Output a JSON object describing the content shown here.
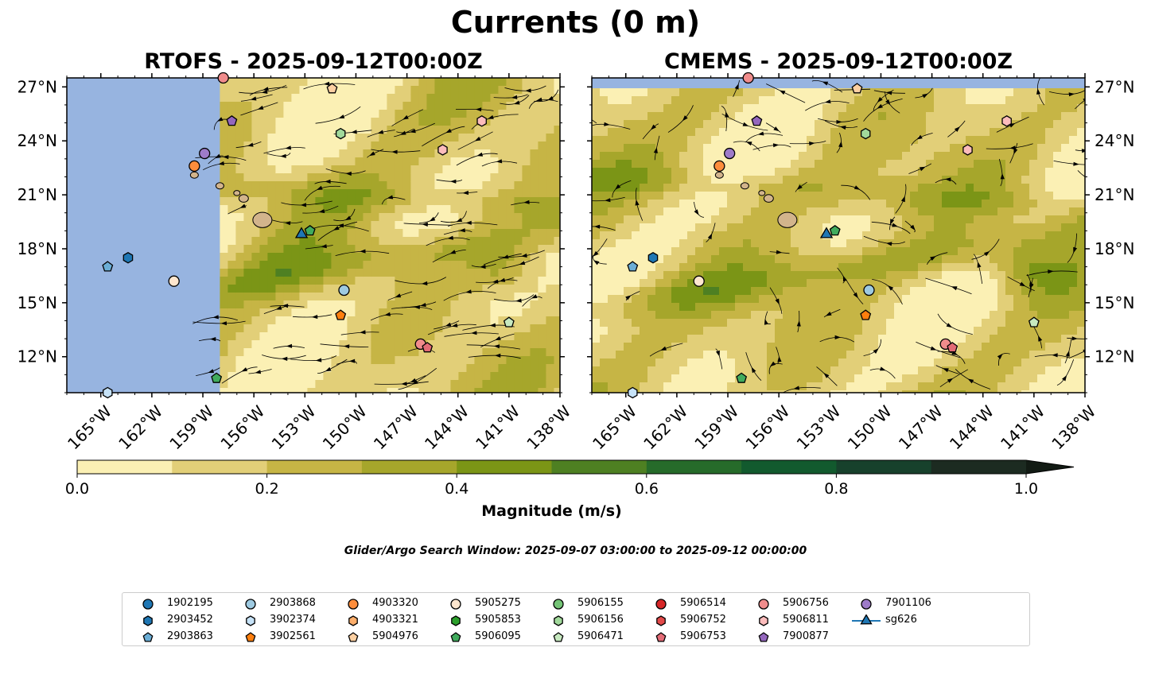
{
  "figure": {
    "title": "Currents (0 m)",
    "search_window": "Glider/Argo Search Window: 2025-09-07 03:00:00 to 2025-09-12 00:00:00"
  },
  "chart_data": [
    {
      "type": "map-streamplot",
      "title": "RTOFS - 2025-09-12T00:00Z",
      "xlim": [
        -167,
        -138
      ],
      "ylim": [
        10,
        27.5
      ],
      "x_ticks": [
        "165°W",
        "162°W",
        "159°W",
        "156°W",
        "153°W",
        "150°W",
        "147°W",
        "144°W",
        "141°W",
        "138°W"
      ],
      "y_ticks": [
        "27°N",
        "24°N",
        "21°N",
        "18°N",
        "15°N",
        "12°N"
      ],
      "data_coverage_west_edge_lon": -158,
      "markers": [
        {
          "id": "5906756",
          "lon": -157.8,
          "lat": 27.5
        },
        {
          "id": "3902374",
          "lon": -164.6,
          "lat": 10.0
        },
        {
          "id": "2903863",
          "lon": -164.6,
          "lat": 17.0
        },
        {
          "id": "2903452",
          "lon": -163.4,
          "lat": 17.5
        },
        {
          "id": "5905275",
          "lon": -160.7,
          "lat": 16.2
        },
        {
          "id": "4903320",
          "lon": -159.5,
          "lat": 22.6
        },
        {
          "id": "7901106",
          "lon": -158.9,
          "lat": 23.3
        },
        {
          "id": "7900877",
          "lon": -157.3,
          "lat": 25.1
        },
        {
          "id": "5904976",
          "lon": -151.4,
          "lat": 26.9
        },
        {
          "id": "5906156",
          "lon": -150.9,
          "lat": 24.4
        },
        {
          "id": "5906811",
          "lon": -144.9,
          "lat": 23.5
        },
        {
          "id": "5906811",
          "lon": -142.6,
          "lat": 25.1
        },
        {
          "id": "sg626",
          "lon": -153.2,
          "lat": 18.8
        },
        {
          "id": "5906095",
          "lon": -152.7,
          "lat": 19.0
        },
        {
          "id": "2903868",
          "lon": -150.7,
          "lat": 15.7
        },
        {
          "id": "3902561",
          "lon": -150.9,
          "lat": 14.3
        },
        {
          "id": "5906471",
          "lon": -141.0,
          "lat": 13.9
        },
        {
          "id": "5906756",
          "lon": -146.2,
          "lat": 12.7
        },
        {
          "id": "5906753",
          "lon": -145.8,
          "lat": 12.5
        },
        {
          "id": "5906095",
          "lon": -158.2,
          "lat": 10.8
        }
      ]
    },
    {
      "type": "map-streamplot",
      "title": "CMEMS - 2025-09-12T00:00Z",
      "xlim": [
        -167,
        -138
      ],
      "ylim": [
        10,
        27.5
      ],
      "x_ticks": [
        "165°W",
        "162°W",
        "159°W",
        "156°W",
        "153°W",
        "150°W",
        "147°W",
        "144°W",
        "141°W",
        "138°W"
      ],
      "y_ticks": [
        "27°N",
        "24°N",
        "21°N",
        "18°N",
        "15°N",
        "12°N"
      ],
      "markers": [
        {
          "id": "5906756",
          "lon": -157.8,
          "lat": 27.5
        },
        {
          "id": "3902374",
          "lon": -164.6,
          "lat": 10.0
        },
        {
          "id": "2903863",
          "lon": -164.6,
          "lat": 17.0
        },
        {
          "id": "2903452",
          "lon": -163.4,
          "lat": 17.5
        },
        {
          "id": "5905275",
          "lon": -160.7,
          "lat": 16.2
        },
        {
          "id": "4903320",
          "lon": -159.5,
          "lat": 22.6
        },
        {
          "id": "7901106",
          "lon": -158.9,
          "lat": 23.3
        },
        {
          "id": "7900877",
          "lon": -157.3,
          "lat": 25.1
        },
        {
          "id": "5904976",
          "lon": -151.4,
          "lat": 26.9
        },
        {
          "id": "5906156",
          "lon": -150.9,
          "lat": 24.4
        },
        {
          "id": "5906811",
          "lon": -144.9,
          "lat": 23.5
        },
        {
          "id": "5906811",
          "lon": -142.6,
          "lat": 25.1
        },
        {
          "id": "sg626",
          "lon": -153.2,
          "lat": 18.8
        },
        {
          "id": "5906095",
          "lon": -152.7,
          "lat": 19.0
        },
        {
          "id": "2903868",
          "lon": -150.7,
          "lat": 15.7
        },
        {
          "id": "3902561",
          "lon": -150.9,
          "lat": 14.3
        },
        {
          "id": "5906471",
          "lon": -141.0,
          "lat": 13.9
        },
        {
          "id": "5906756",
          "lon": -146.2,
          "lat": 12.7
        },
        {
          "id": "5906753",
          "lon": -145.8,
          "lat": 12.5
        },
        {
          "id": "5906095",
          "lon": -158.2,
          "lat": 10.8
        }
      ]
    }
  ],
  "colorbar": {
    "label": "Magnitude (m/s)",
    "levels": [
      0.0,
      0.1,
      0.2,
      0.3,
      0.4,
      0.5,
      0.6,
      0.7,
      0.8,
      0.9,
      1.0
    ],
    "colors": [
      "#fbf0b4",
      "#e2cf78",
      "#c6b545",
      "#a6a62b",
      "#7b9516",
      "#4e8022",
      "#266b2a",
      "#125a2e",
      "#17412c",
      "#1c2b21"
    ],
    "extend": "max",
    "extend_color": "#121b14",
    "tick_labels": [
      "0.0",
      "0.2",
      "0.4",
      "0.6",
      "0.8",
      "1.0"
    ]
  },
  "colors": {
    "land": "#d2b48c",
    "nodata": "#97b4e0",
    "streamline": "#000000"
  },
  "legend": [
    {
      "label": "1902195",
      "marker": "circle",
      "color": "#1f77b4"
    },
    {
      "label": "2903452",
      "marker": "hexagon",
      "color": "#1f77b4"
    },
    {
      "label": "2903863",
      "marker": "pentagon",
      "color": "#6baed6"
    },
    {
      "label": "2903868",
      "marker": "circle",
      "color": "#9ecae1"
    },
    {
      "label": "3902374",
      "marker": "hexagon",
      "color": "#c6e2f7"
    },
    {
      "label": "3902561",
      "marker": "pentagon",
      "color": "#ff7f0e"
    },
    {
      "label": "4903320",
      "marker": "circle",
      "color": "#fd8d3c"
    },
    {
      "label": "4903321",
      "marker": "hexagon",
      "color": "#fdae6b"
    },
    {
      "label": "5904976",
      "marker": "pentagon",
      "color": "#fdd0a2"
    },
    {
      "label": "5905275",
      "marker": "circle",
      "color": "#fee6ce"
    },
    {
      "label": "5905853",
      "marker": "hexagon",
      "color": "#2ca02c"
    },
    {
      "label": "5906095",
      "marker": "pentagon",
      "color": "#41ab5d"
    },
    {
      "label": "5906155",
      "marker": "circle",
      "color": "#74c476"
    },
    {
      "label": "5906156",
      "marker": "hexagon",
      "color": "#a1d99b"
    },
    {
      "label": "5906471",
      "marker": "pentagon",
      "color": "#c7e9c0"
    },
    {
      "label": "5906514",
      "marker": "circle",
      "color": "#d62728"
    },
    {
      "label": "5906752",
      "marker": "hexagon",
      "color": "#e34a4a"
    },
    {
      "label": "5906753",
      "marker": "pentagon",
      "color": "#e36b76"
    },
    {
      "label": "5906756",
      "marker": "circle",
      "color": "#f08c8c"
    },
    {
      "label": "5906811",
      "marker": "hexagon",
      "color": "#fcbcbc"
    },
    {
      "label": "7900877",
      "marker": "pentagon",
      "color": "#9467bd"
    },
    {
      "label": "7901106",
      "marker": "circle",
      "color": "#9e7bc9"
    },
    {
      "label": "sg626",
      "marker": "triangle",
      "color": "#1f77b4",
      "line": true
    }
  ]
}
